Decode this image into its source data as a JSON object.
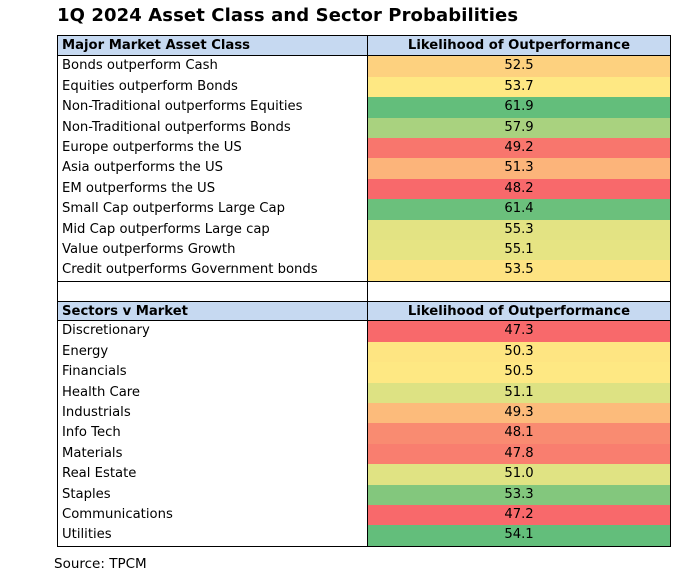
{
  "title": "1Q 2024 Asset Class and Sector Probabilities",
  "source": "Source:  TPCM",
  "asset_section": {
    "header_label": "Major Market Asset Class",
    "header_value": "Likelihood of Outperformance",
    "rows": [
      {
        "label": "Bonds outperform Cash",
        "value": "52.5",
        "color": "#fdd17f"
      },
      {
        "label": "Equities outperform Bonds",
        "value": "53.7",
        "color": "#fee883"
      },
      {
        "label": "Non-Traditional outperforms Equities",
        "value": "61.9",
        "color": "#63be7b"
      },
      {
        "label": "Non-Traditional outperforms Bonds",
        "value": "57.9",
        "color": "#a9d27f"
      },
      {
        "label": "Europe outperforms the US",
        "value": "49.2",
        "color": "#f8766d"
      },
      {
        "label": "Asia outperforms the US",
        "value": "51.3",
        "color": "#fcb47a"
      },
      {
        "label": "EM outperforms the US",
        "value": "48.2",
        "color": "#f8696b"
      },
      {
        "label": "Small Cap outperforms Large Cap",
        "value": "61.4",
        "color": "#6bc07c"
      },
      {
        "label": "Mid Cap outperforms Large cap",
        "value": "55.3",
        "color": "#e3e383"
      },
      {
        "label": "Value outperforms Growth",
        "value": "55.1",
        "color": "#e6e483"
      },
      {
        "label": "Credit outperforms Government bonds",
        "value": "53.5",
        "color": "#fee382"
      }
    ]
  },
  "sector_section": {
    "header_label": "Sectors v Market",
    "header_value": "Likelihood of Outperformance",
    "rows": [
      {
        "label": "Discretionary",
        "value": "47.3",
        "color": "#f8696b"
      },
      {
        "label": "Energy",
        "value": "50.3",
        "color": "#fee582"
      },
      {
        "label": "Financials",
        "value": "50.5",
        "color": "#fee883"
      },
      {
        "label": "Health Care",
        "value": "51.1",
        "color": "#dde283"
      },
      {
        "label": "Industrials",
        "value": "49.3",
        "color": "#fcbb7b"
      },
      {
        "label": "Info Tech",
        "value": "48.1",
        "color": "#f98b71"
      },
      {
        "label": "Materials",
        "value": "47.8",
        "color": "#f97e6f"
      },
      {
        "label": "Real Estate",
        "value": "51.0",
        "color": "#e0e383"
      },
      {
        "label": "Staples",
        "value": "53.3",
        "color": "#83c77d"
      },
      {
        "label": "Communications",
        "value": "47.2",
        "color": "#f8696b"
      },
      {
        "label": "Utilities",
        "value": "54.1",
        "color": "#63be7b"
      }
    ]
  }
}
